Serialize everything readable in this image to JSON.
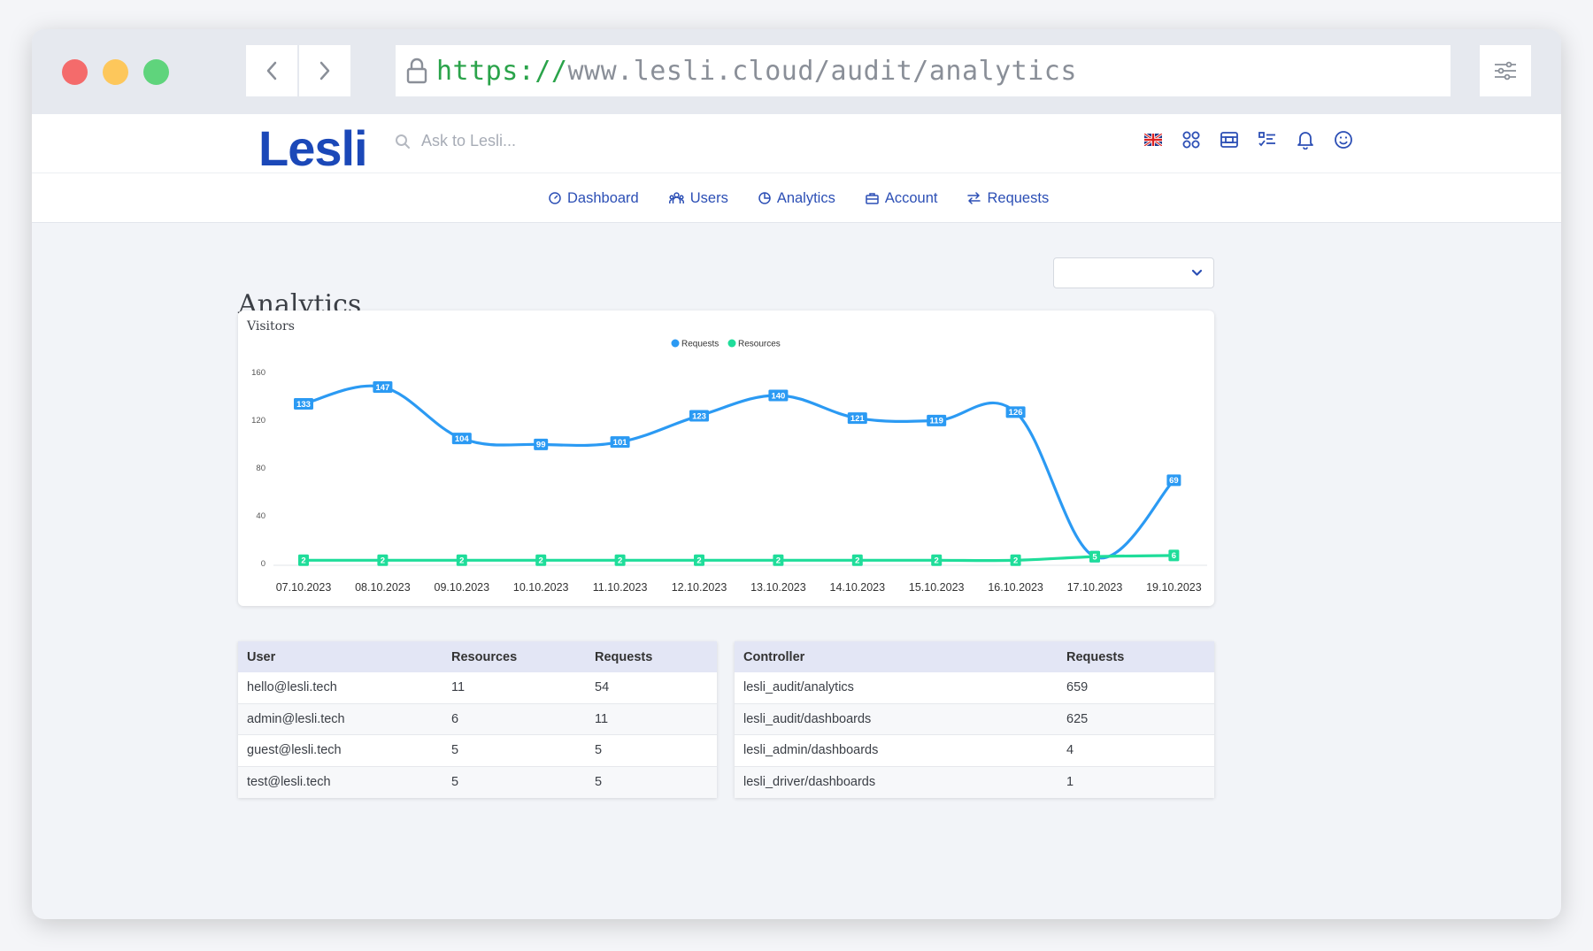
{
  "browser": {
    "url_protocol": "https://",
    "url_rest": "www.lesli.cloud/audit/analytics"
  },
  "header": {
    "logo": "Lesli",
    "search_placeholder": "Ask to Lesli..."
  },
  "subnav": {
    "items": [
      {
        "label": "Dashboard",
        "icon": "gauge-icon"
      },
      {
        "label": "Users",
        "icon": "users-icon"
      },
      {
        "label": "Analytics",
        "icon": "pie-chart-icon"
      },
      {
        "label": "Account",
        "icon": "briefcase-icon"
      },
      {
        "label": "Requests",
        "icon": "arrows-exchange-icon"
      }
    ]
  },
  "page": {
    "title": "Analytics"
  },
  "colors": {
    "accent": "#2c4fb5",
    "requests": "#2b9af3",
    "resources": "#1fdd9a"
  },
  "chart_data": {
    "type": "line",
    "title": "Visitors",
    "categories": [
      "07.10.2023",
      "08.10.2023",
      "09.10.2023",
      "10.10.2023",
      "11.10.2023",
      "12.10.2023",
      "13.10.2023",
      "14.10.2023",
      "15.10.2023",
      "16.10.2023",
      "17.10.2023",
      "19.10.2023"
    ],
    "series": [
      {
        "name": "Requests",
        "values": [
          133,
          147,
          104,
          99,
          101,
          123,
          140,
          121,
          119,
          126,
          5,
          69
        ]
      },
      {
        "name": "Resources",
        "values": [
          2,
          2,
          2,
          2,
          2,
          2,
          2,
          2,
          2,
          2,
          5,
          6
        ]
      }
    ],
    "yticks": [
      0,
      40,
      80,
      120,
      160
    ],
    "ylim": [
      0,
      160
    ],
    "legend": "top-center"
  },
  "users_table": {
    "headers": [
      "User",
      "Resources",
      "Requests"
    ],
    "rows": [
      [
        "hello@lesli.tech",
        "11",
        "54"
      ],
      [
        "admin@lesli.tech",
        "6",
        "11"
      ],
      [
        "guest@lesli.tech",
        "5",
        "5"
      ],
      [
        "test@lesli.tech",
        "5",
        "5"
      ]
    ]
  },
  "controller_table": {
    "headers": [
      "Controller",
      "Requests"
    ],
    "rows": [
      [
        "lesli_audit/analytics",
        "659"
      ],
      [
        "lesli_audit/dashboards",
        "625"
      ],
      [
        "lesli_admin/dashboards",
        "4"
      ],
      [
        "lesli_driver/dashboards",
        "1"
      ]
    ]
  }
}
